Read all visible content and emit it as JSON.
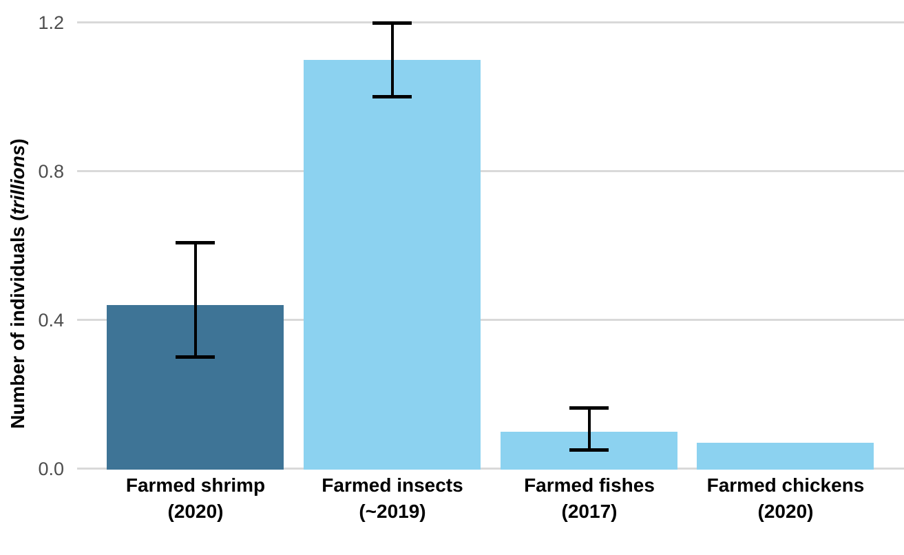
{
  "chart_data": {
    "type": "bar",
    "title": "",
    "xlabel": "",
    "ylabel": "Number of individuals (trillions)",
    "ylabel_prefix": "Number of individuals (",
    "ylabel_italic": "trillions",
    "ylabel_suffix": ")",
    "ytick_labels": [
      "0.0",
      "0.4",
      "0.8",
      "1.2"
    ],
    "ytick_values": [
      0.0,
      0.4,
      0.8,
      1.2
    ],
    "ylim": [
      0,
      1.25
    ],
    "grid": "horizontal-only",
    "legend": "none",
    "categories": [
      {
        "label": "Farmed shrimp",
        "year": "(2020)"
      },
      {
        "label": "Farmed insects",
        "year": "(~2019)"
      },
      {
        "label": "Farmed fishes",
        "year": "(2017)"
      },
      {
        "label": "Farmed chickens",
        "year": "(2020)"
      }
    ],
    "series": [
      {
        "name": "Number of individuals (trillions)",
        "values": [
          0.44,
          1.1,
          0.1,
          0.07
        ],
        "error_low": [
          0.3,
          1.0,
          0.05,
          null
        ],
        "error_high": [
          0.61,
          1.2,
          0.165,
          null
        ]
      }
    ],
    "bar_colors": [
      "#3e7496",
      "#8cd2f0",
      "#8cd2f0",
      "#8cd2f0"
    ],
    "colors": {
      "highlight_bar": "#3e7496",
      "default_bar": "#8cd2f0",
      "gridline": "#d9d9d9",
      "tick_label": "#4d4d4d",
      "error_bar": "#000000",
      "axis_title": "#000000",
      "background": "#ffffff"
    }
  }
}
